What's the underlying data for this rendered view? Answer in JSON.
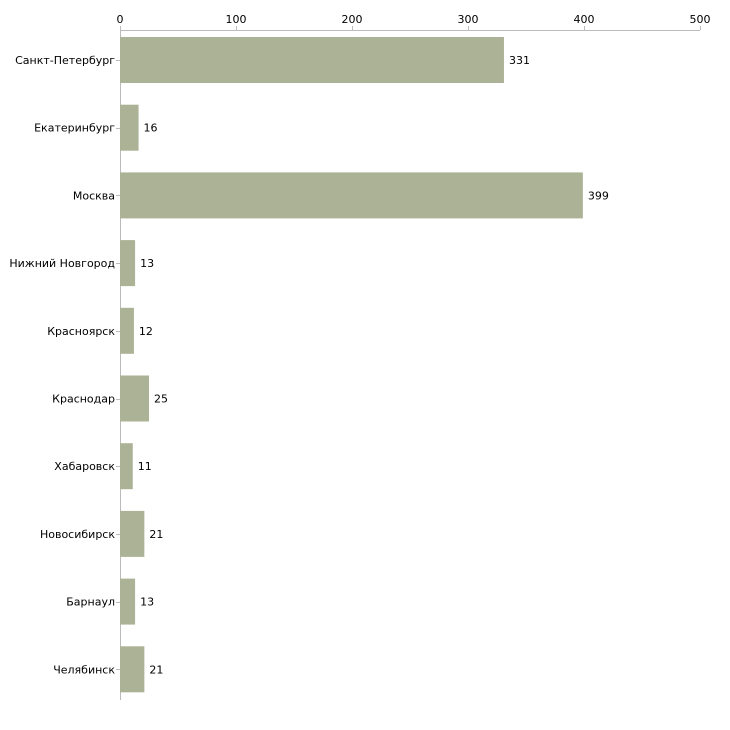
{
  "chart_data": {
    "type": "bar",
    "orientation": "horizontal",
    "title": "",
    "xlabel": "",
    "ylabel": "",
    "xlim": [
      0,
      500
    ],
    "xticks": [
      0,
      100,
      200,
      300,
      400,
      500
    ],
    "x_axis_position": "top",
    "grid": false,
    "bar_color": "#acb296",
    "categories": [
      "Санкт-Петербург",
      "Екатеринбург",
      "Москва",
      "Нижний Новгород",
      "Красноярск",
      "Краснодар",
      "Хабаровск",
      "Новосибирск",
      "Барнаул",
      "Челябинск"
    ],
    "values": [
      331,
      16,
      399,
      13,
      12,
      25,
      11,
      21,
      13,
      21
    ]
  }
}
